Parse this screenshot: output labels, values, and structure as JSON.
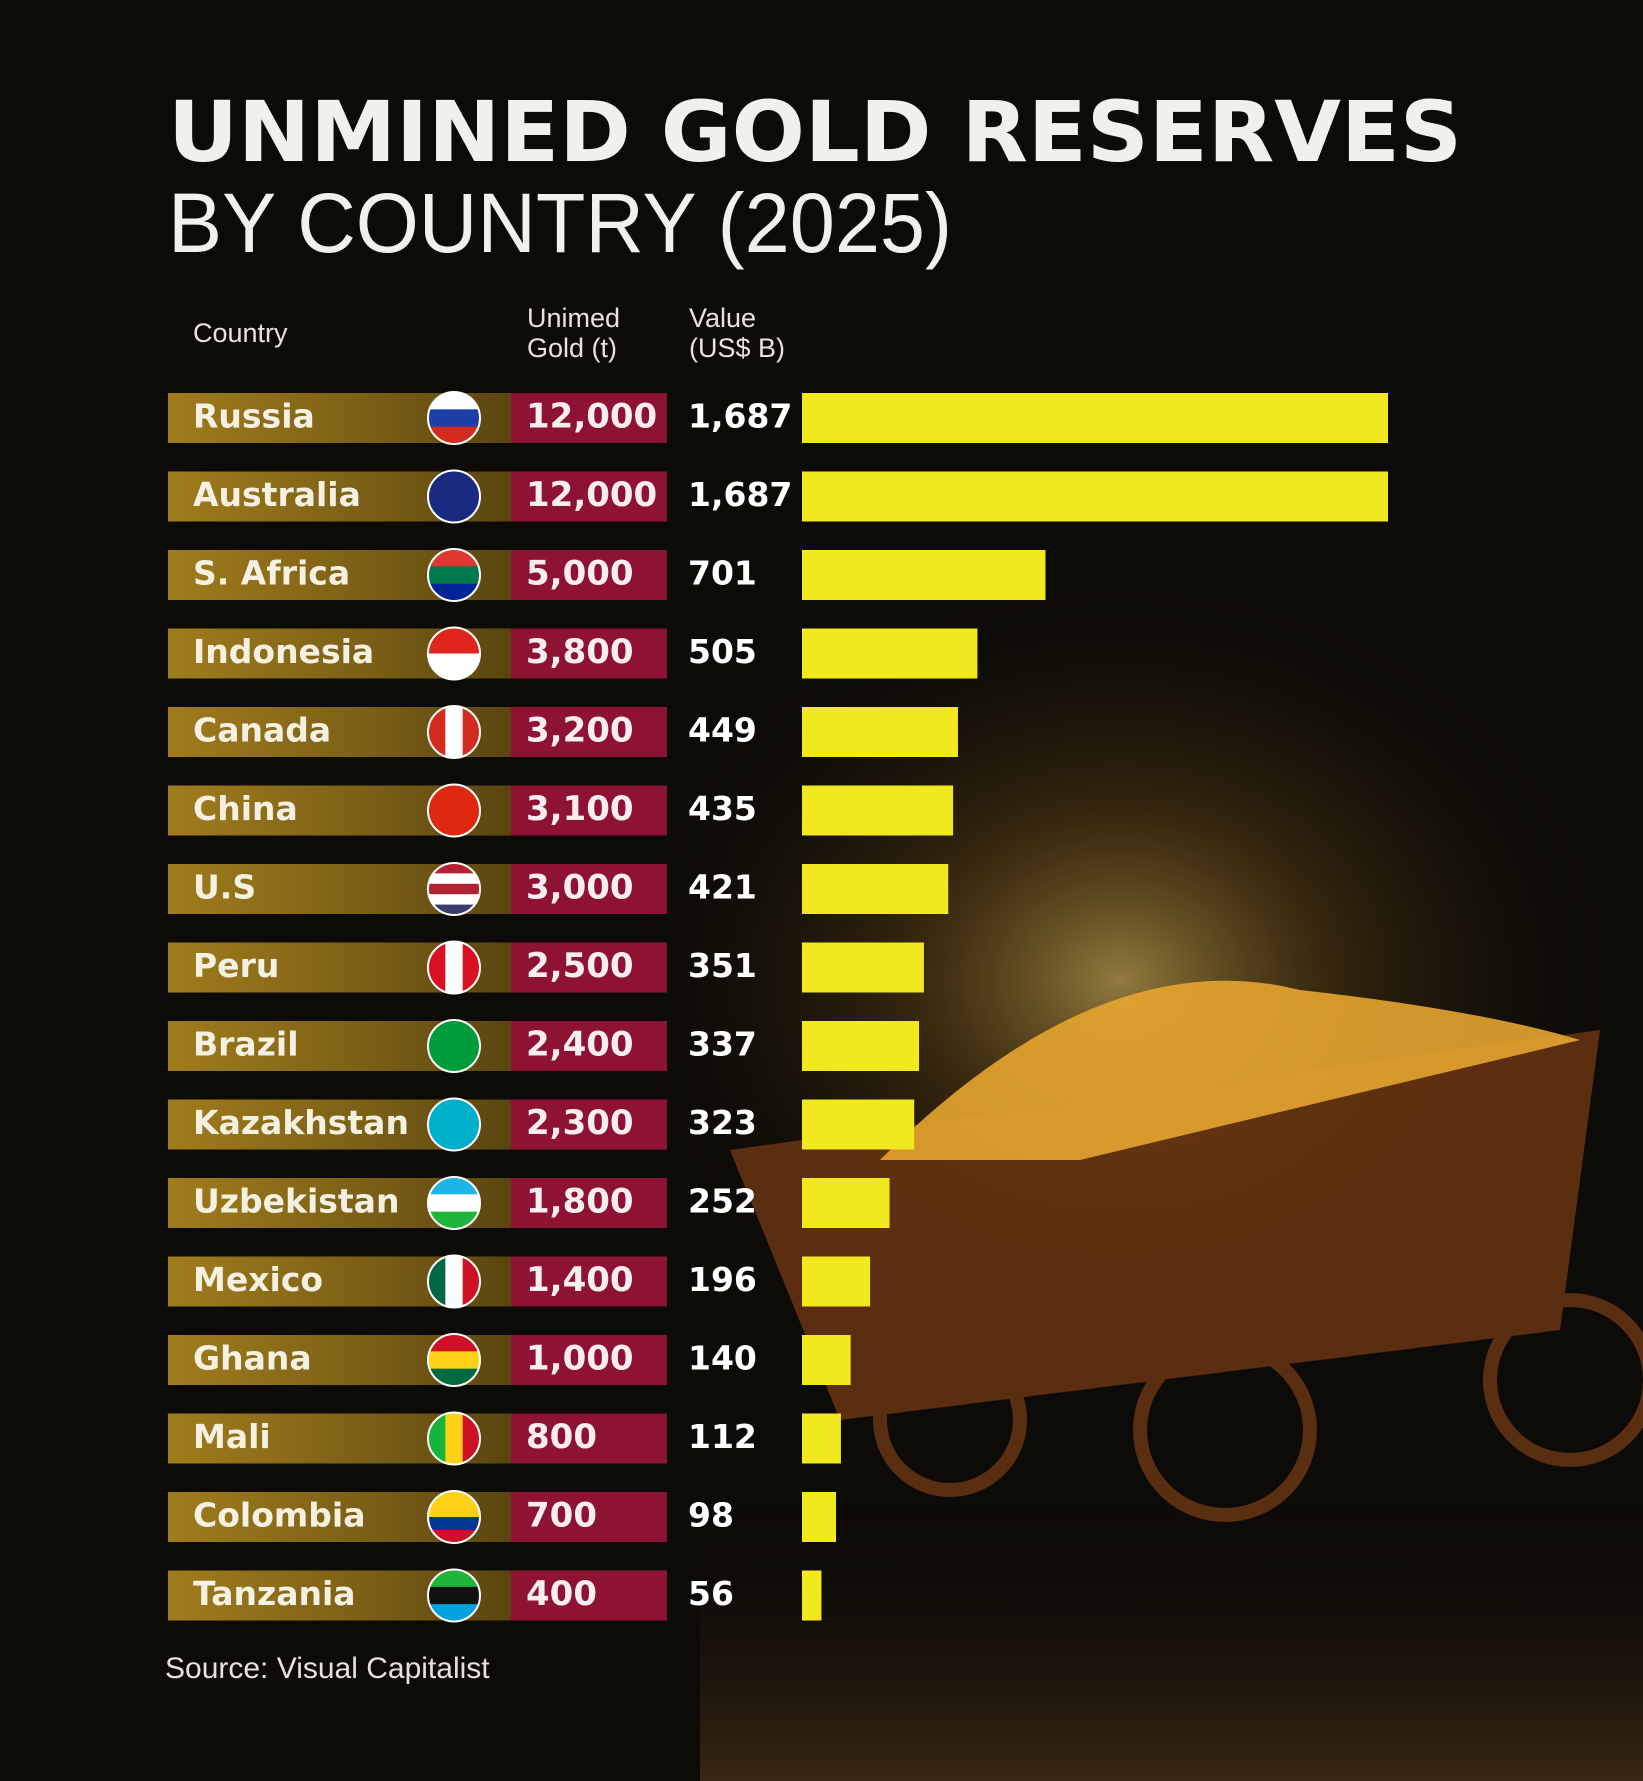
{
  "chart_data": {
    "type": "bar",
    "title": "UNMINED GOLD RESERVES",
    "subtitle": "BY COUNTRY (2025)",
    "headers": {
      "country": "Country",
      "gold": [
        "Unimed",
        "Gold (t)"
      ],
      "value": [
        "Value",
        "(US$ B)"
      ]
    },
    "categories": [
      "Russia",
      "Australia",
      "S. Africa",
      "Indonesia",
      "Canada",
      "China",
      "U.S",
      "Peru",
      "Brazil",
      "Kazakhstan",
      "Uzbekistan",
      "Mexico",
      "Ghana",
      "Mali",
      "Colombia",
      "Tanzania"
    ],
    "unmined_gold_t": [
      "12,000",
      "12,000",
      "5,000",
      "3,800",
      "3,200",
      "3,100",
      "3,000",
      "2,500",
      "2,400",
      "2,300",
      "1,800",
      "1,400",
      "1,000",
      "800",
      "700",
      "400"
    ],
    "values": [
      1687,
      1687,
      701,
      505,
      449,
      435,
      421,
      351,
      337,
      323,
      252,
      196,
      140,
      112,
      98,
      56
    ],
    "value_labels": [
      "1,687",
      "1,687",
      "701",
      "505",
      "449",
      "435",
      "421",
      "351",
      "337",
      "323",
      "252",
      "196",
      "140",
      "112",
      "98",
      "56"
    ],
    "color": "#f2e81e",
    "source": "Source: Visual Capitalist"
  }
}
